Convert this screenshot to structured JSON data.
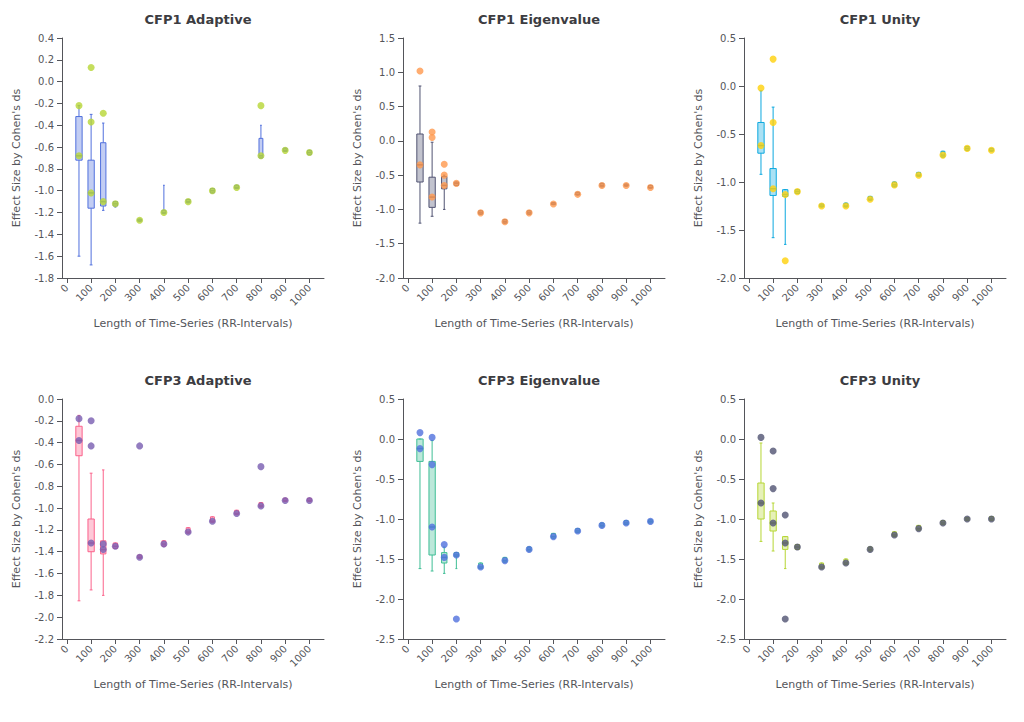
{
  "chart_data": [
    {
      "type": "boxplot",
      "title": "CFP1 Adaptive",
      "x_label": "Length of Time-Series (RR-Intervals)",
      "y_label": "Effect Size by Cohen's ds",
      "x": [
        50,
        100,
        150,
        200,
        300,
        400,
        500,
        600,
        700,
        800,
        900,
        1000
      ],
      "medians": [
        -0.68,
        -1.02,
        -1.1,
        -1.12,
        -1.27,
        -1.2,
        -1.1,
        -1.0,
        -0.97,
        -0.68,
        -0.63,
        -0.65
      ],
      "q1": [
        -0.72,
        -1.16,
        -1.14,
        -1.14,
        -1.28,
        -1.21,
        -1.11,
        -1.02,
        -0.98,
        -0.7,
        -0.64,
        -0.67
      ],
      "q3": [
        -0.32,
        -0.72,
        -0.56,
        -1.1,
        -1.26,
        -1.18,
        -1.08,
        -0.98,
        -0.95,
        -0.52,
        -0.61,
        -0.63
      ],
      "whislo": [
        -1.6,
        -1.68,
        -1.18,
        -1.15,
        -1.28,
        -1.21,
        -1.11,
        -1.02,
        -0.98,
        -0.7,
        -0.64,
        -0.67
      ],
      "whishi": [
        -0.22,
        -0.3,
        -0.38,
        -1.1,
        -1.26,
        -0.95,
        -1.08,
        -0.98,
        -0.95,
        -0.4,
        -0.61,
        -0.63
      ],
      "outliers_x": [
        50,
        100,
        100,
        150,
        800
      ],
      "outliers_y": [
        -0.22,
        0.13,
        -0.37,
        -0.29,
        -0.22
      ],
      "xlim": [
        -20,
        1060
      ],
      "xticks": [
        0,
        100,
        200,
        300,
        400,
        500,
        600,
        700,
        800,
        900,
        1000
      ],
      "ylim": [
        -1.8,
        0.4
      ],
      "yticks": [
        0.4,
        0.2,
        {
          "value": 0,
          "label": "0.0"
        },
        -0.2,
        -0.4,
        -0.6,
        -0.8,
        {
          "value": -1,
          "label": "-1.0"
        },
        -1.2,
        -1.4,
        -1.6,
        -1.8
      ],
      "grid": false
    },
    {
      "type": "boxplot",
      "title": "CFP1 Eigenvalue",
      "x_label": "Length of Time-Series (RR-Intervals)",
      "y_label": "Effect Size by Cohen's ds",
      "x": [
        50,
        100,
        150,
        200,
        300,
        400,
        500,
        600,
        700,
        800,
        900,
        1000
      ],
      "medians": [
        -0.35,
        -0.82,
        -0.65,
        -0.62,
        -1.05,
        -1.18,
        -1.05,
        -0.92,
        -0.78,
        -0.65,
        -0.65,
        -0.68
      ],
      "q1": [
        -0.6,
        -0.97,
        -0.7,
        -0.65,
        -1.07,
        -1.2,
        -1.07,
        -0.93,
        -0.79,
        -0.67,
        -0.66,
        -0.69
      ],
      "q3": [
        0.1,
        -0.53,
        -0.52,
        -0.6,
        -1.02,
        -1.15,
        -1.02,
        -0.9,
        -0.75,
        -0.62,
        -0.63,
        -0.65
      ],
      "whislo": [
        -1.2,
        -1.1,
        -1.0,
        -0.65,
        -1.07,
        -1.2,
        -1.07,
        -0.93,
        -0.79,
        -0.67,
        -0.66,
        -0.69
      ],
      "whishi": [
        0.8,
        -0.02,
        -0.5,
        -0.6,
        -1.02,
        -1.15,
        -1.02,
        -0.9,
        -0.75,
        -0.62,
        -0.63,
        -0.65
      ],
      "outliers_x": [
        50,
        100,
        100,
        150,
        150
      ],
      "outliers_y": [
        1.02,
        0.13,
        0.05,
        -0.5,
        -0.34
      ],
      "xlim": [
        -20,
        1060
      ],
      "xticks": [
        0,
        100,
        200,
        300,
        400,
        500,
        600,
        700,
        800,
        900,
        1000
      ],
      "ylim": [
        -2.0,
        1.5
      ],
      "yticks": [
        1.5,
        {
          "value": 1,
          "label": "1.0"
        },
        0.5,
        {
          "value": 0,
          "label": "0.0"
        },
        -0.5,
        {
          "value": -1,
          "label": "-1.0"
        },
        -1.5,
        {
          "value": -2,
          "label": "-2.0"
        }
      ],
      "grid": false
    },
    {
      "type": "boxplot",
      "title": "CFP1 Unity",
      "x_label": "Length of Time-Series (RR-Intervals)",
      "y_label": "Effect Size by Cohen's ds",
      "x": [
        50,
        100,
        150,
        200,
        300,
        400,
        500,
        600,
        700,
        800,
        900,
        1000
      ],
      "medians": [
        -0.62,
        -1.07,
        -1.13,
        -1.1,
        -1.25,
        -1.25,
        -1.18,
        -1.03,
        -0.93,
        -0.72,
        -0.65,
        -0.67
      ],
      "q1": [
        -0.7,
        -1.14,
        -1.15,
        -1.12,
        -1.26,
        -1.26,
        -1.19,
        -1.05,
        -0.94,
        -0.74,
        -0.67,
        -0.68
      ],
      "q3": [
        -0.38,
        -0.86,
        -1.08,
        -1.08,
        -1.23,
        -1.22,
        -1.15,
        -1.0,
        -0.9,
        -0.68,
        -0.63,
        -0.65
      ],
      "whislo": [
        -0.92,
        -1.58,
        -1.65,
        -1.12,
        -1.26,
        -1.26,
        -1.19,
        -1.05,
        -0.94,
        -0.74,
        -0.67,
        -0.68
      ],
      "whishi": [
        -0.05,
        -0.22,
        -1.08,
        -1.08,
        -1.23,
        -1.22,
        -1.15,
        -1.0,
        -0.9,
        -0.68,
        -0.63,
        -0.65
      ],
      "outliers_x": [
        50,
        100,
        100,
        150
      ],
      "outliers_y": [
        -0.02,
        0.28,
        -0.38,
        -1.82
      ],
      "xlim": [
        -20,
        1060
      ],
      "xticks": [
        0,
        100,
        200,
        300,
        400,
        500,
        600,
        700,
        800,
        900,
        1000
      ],
      "ylim": [
        -2.0,
        0.5
      ],
      "yticks": [
        0.5,
        {
          "value": 0,
          "label": "0.0"
        },
        -0.5,
        {
          "value": -1,
          "label": "-1.0"
        },
        -1.5,
        {
          "value": -2,
          "label": "-2.0"
        }
      ],
      "grid": false
    },
    {
      "type": "boxplot",
      "title": "CFP3 Adaptive",
      "x_label": "Length of Time-Series (RR-Intervals)",
      "y_label": "Effect Size by Cohen's ds",
      "x": [
        50,
        100,
        150,
        200,
        300,
        400,
        500,
        600,
        700,
        800,
        900,
        1000
      ],
      "medians": [
        -0.38,
        -1.32,
        -1.38,
        -1.35,
        -1.45,
        -1.33,
        -1.22,
        -1.12,
        -1.05,
        -0.98,
        -0.93,
        -0.93
      ],
      "q1": [
        -0.52,
        -1.4,
        -1.42,
        -1.37,
        -1.46,
        -1.35,
        -1.23,
        -1.13,
        -1.06,
        -0.99,
        -0.94,
        -0.94
      ],
      "q3": [
        -0.25,
        -1.1,
        -1.3,
        -1.32,
        -1.43,
        -1.3,
        -1.18,
        -1.08,
        -1.02,
        -0.95,
        -0.91,
        -0.91
      ],
      "whislo": [
        -1.85,
        -1.75,
        -1.8,
        -1.37,
        -1.46,
        -1.35,
        -1.23,
        -1.13,
        -1.06,
        -0.99,
        -0.94,
        -0.94
      ],
      "whishi": [
        -0.15,
        -0.68,
        -0.65,
        -1.32,
        -1.43,
        -1.3,
        -1.18,
        -1.08,
        -1.02,
        -0.95,
        -0.91,
        -0.91
      ],
      "outliers_x": [
        50,
        100,
        100,
        150,
        300,
        800
      ],
      "outliers_y": [
        -0.18,
        -0.2,
        -0.43,
        -1.33,
        -0.43,
        -0.62
      ],
      "xlim": [
        -20,
        1060
      ],
      "xticks": [
        0,
        100,
        200,
        300,
        400,
        500,
        600,
        700,
        800,
        900,
        1000
      ],
      "ylim": [
        -2.2,
        0.0
      ],
      "yticks": [
        {
          "value": 0,
          "label": "0.0"
        },
        -0.2,
        -0.4,
        -0.6,
        -0.8,
        {
          "value": -1,
          "label": "-1.0"
        },
        -1.2,
        -1.4,
        -1.6,
        -1.8,
        {
          "value": -2,
          "label": "-2.0"
        },
        -2.2
      ],
      "grid": false
    },
    {
      "type": "boxplot",
      "title": "CFP3 Eigenvalue",
      "x_label": "Length of Time-Series (RR-Intervals)",
      "y_label": "Effect Size by Cohen's ds",
      "x": [
        50,
        100,
        150,
        200,
        300,
        400,
        500,
        600,
        700,
        800,
        900,
        1000
      ],
      "medians": [
        -0.12,
        -1.1,
        -1.48,
        -1.45,
        -1.6,
        -1.52,
        -1.38,
        -1.22,
        -1.15,
        -1.08,
        -1.05,
        -1.03
      ],
      "q1": [
        -0.28,
        -1.45,
        -1.55,
        -1.47,
        -1.62,
        -1.54,
        -1.4,
        -1.24,
        -1.17,
        -1.1,
        -1.07,
        -1.05
      ],
      "q3": [
        0.0,
        -0.28,
        -1.42,
        -1.42,
        -1.55,
        -1.48,
        -1.35,
        -1.18,
        -1.12,
        -1.05,
        -1.02,
        -1.01
      ],
      "whislo": [
        -1.62,
        -1.65,
        -1.68,
        -1.62,
        -1.62,
        -1.54,
        -1.4,
        -1.24,
        -1.17,
        -1.1,
        -1.07,
        -1.05
      ],
      "whishi": [
        0.0,
        -0.02,
        -1.35,
        -1.42,
        -1.55,
        -1.48,
        -1.35,
        -1.18,
        -1.12,
        -1.05,
        -1.02,
        -1.01
      ],
      "outliers_x": [
        50,
        100,
        100,
        150,
        200
      ],
      "outliers_y": [
        0.08,
        0.02,
        -0.32,
        -1.32,
        -2.25
      ],
      "xlim": [
        -20,
        1060
      ],
      "xticks": [
        0,
        100,
        200,
        300,
        400,
        500,
        600,
        700,
        800,
        900,
        1000
      ],
      "ylim": [
        -2.5,
        0.5
      ],
      "yticks": [
        0.5,
        {
          "value": 0,
          "label": "0.0"
        },
        -0.5,
        {
          "value": -1,
          "label": "-1.0"
        },
        -1.5,
        {
          "value": -2,
          "label": "-2.0"
        },
        -2.5
      ],
      "grid": false
    },
    {
      "type": "boxplot",
      "title": "CFP3 Unity",
      "x_label": "Length of Time-Series (RR-Intervals)",
      "y_label": "Effect Size by Cohen's ds",
      "x": [
        50,
        100,
        150,
        200,
        300,
        400,
        500,
        600,
        700,
        800,
        900,
        1000
      ],
      "medians": [
        -0.8,
        -1.05,
        -1.3,
        -1.35,
        -1.6,
        -1.55,
        -1.38,
        -1.2,
        -1.12,
        -1.05,
        -1.0,
        -1.0
      ],
      "q1": [
        -1.0,
        -1.15,
        -1.38,
        -1.38,
        -1.62,
        -1.57,
        -1.4,
        -1.22,
        -1.14,
        -1.07,
        -1.02,
        -1.02
      ],
      "q3": [
        -0.55,
        -0.9,
        -1.22,
        -1.32,
        -1.55,
        -1.5,
        -1.35,
        -1.16,
        -1.08,
        -1.02,
        -0.98,
        -0.97
      ],
      "whislo": [
        -1.28,
        -1.4,
        -1.62,
        -1.38,
        -1.62,
        -1.57,
        -1.4,
        -1.22,
        -1.14,
        -1.07,
        -1.02,
        -1.02
      ],
      "whishi": [
        -0.05,
        -0.8,
        -1.22,
        -1.32,
        -1.55,
        -1.5,
        -1.35,
        -1.16,
        -1.08,
        -1.02,
        -0.98,
        -0.97
      ],
      "outliers_x": [
        50,
        100,
        100,
        150,
        150
      ],
      "outliers_y": [
        0.02,
        -0.15,
        -0.62,
        -0.95,
        -2.25
      ],
      "xlim": [
        -20,
        1060
      ],
      "xticks": [
        0,
        100,
        200,
        300,
        400,
        500,
        600,
        700,
        800,
        900,
        1000
      ],
      "ylim": [
        -2.5,
        0.5
      ],
      "yticks": [
        0.5,
        {
          "value": 0,
          "label": "0.0"
        },
        -0.5,
        {
          "value": -1,
          "label": "-1.0"
        },
        -1.5,
        {
          "value": -2,
          "label": "-2.0"
        },
        -2.5
      ],
      "grid": false
    }
  ]
}
